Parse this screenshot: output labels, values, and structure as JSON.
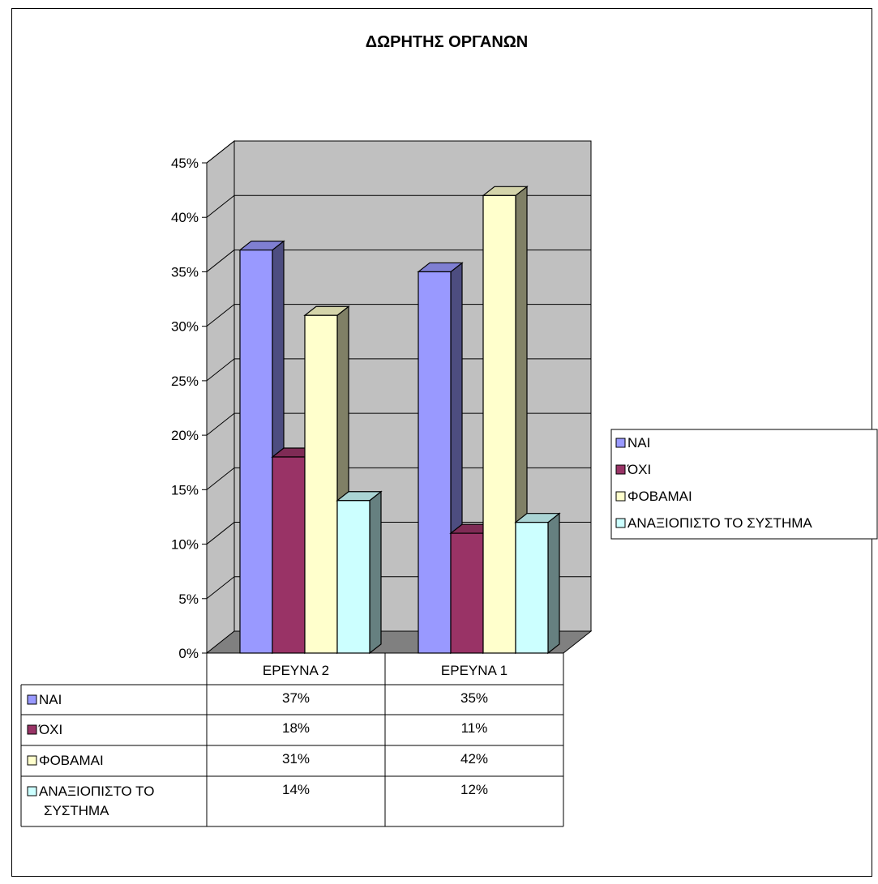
{
  "chart_data": {
    "type": "bar",
    "title": "ΔΩΡΗΤΗΣ ΟΡΓΑΝΩΝ",
    "xlabel": "",
    "ylabel": "",
    "categories": [
      "ΕΡΕΥΝΑ 2",
      "ΕΡΕΥΝΑ 1"
    ],
    "ylim": [
      0,
      45
    ],
    "yticks": [
      "0%",
      "5%",
      "10%",
      "15%",
      "20%",
      "25%",
      "30%",
      "35%",
      "40%",
      "45%"
    ],
    "grid": true,
    "three_d": true,
    "legend_position": "right",
    "series": [
      {
        "name": "ΝΑΙ",
        "values": [
          37,
          35
        ],
        "table_labels": [
          "37%",
          "35%"
        ],
        "color": "#9999FF",
        "side": "#4D4D80",
        "top": "#7F7FD2"
      },
      {
        "name": "ΌΧΙ",
        "values": [
          18,
          11
        ],
        "table_labels": [
          "18%",
          "11%"
        ],
        "color": "#993366",
        "side": "#4D1A33",
        "top": "#7F2B55"
      },
      {
        "name": "ΦΟΒΑΜΑΙ",
        "values": [
          31,
          42
        ],
        "table_labels": [
          "31%",
          "42%"
        ],
        "color": "#FFFFCC",
        "side": "#808066",
        "top": "#D4D4AA"
      },
      {
        "name": "ΑΝΑΞΙΟΠΙΣΤΟ ΤΟ ΣΥΣΤΗΜΑ",
        "values": [
          14,
          12
        ],
        "table_labels": [
          "14%",
          "12%"
        ],
        "color": "#CCFFFF",
        "side": "#668080",
        "top": "#AAD4D4"
      }
    ],
    "colors": {
      "wall": "#C0C0C0",
      "floor": "#808080",
      "gridline": "#000000"
    }
  }
}
